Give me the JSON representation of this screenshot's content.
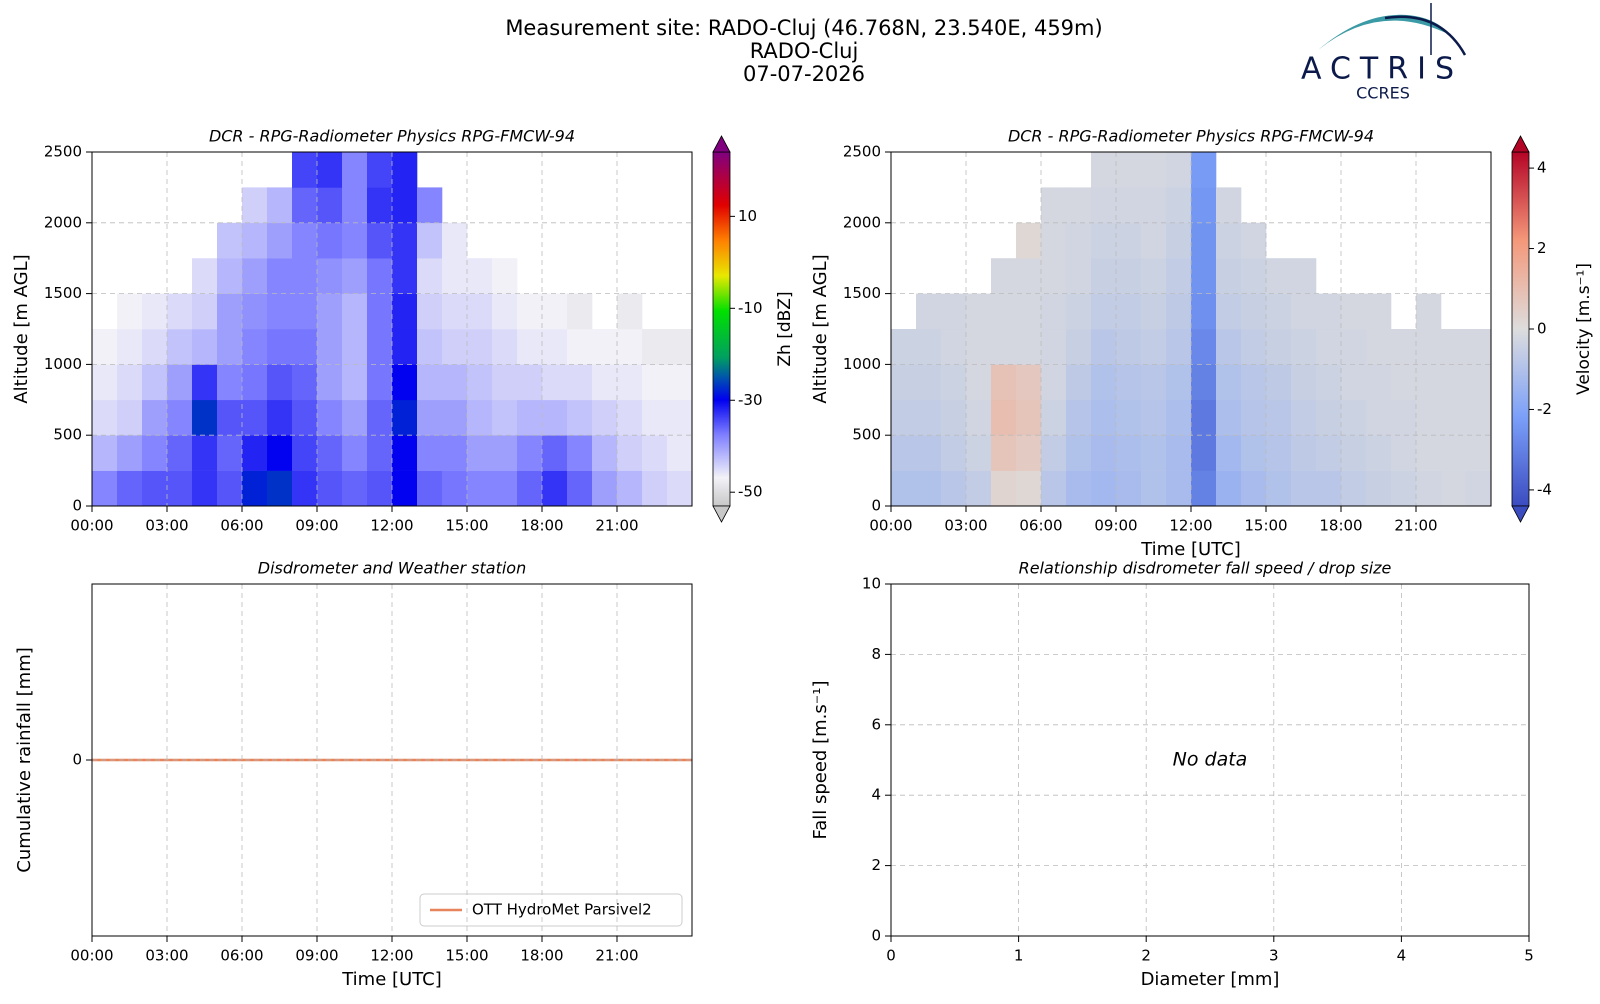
{
  "figure": {
    "title_lines": [
      "Measurement site: RADO-Cluj (46.768N, 23.540E, 459m)",
      "RADO-Cluj",
      "07-07-2026"
    ],
    "logo": {
      "name": "ACTRIS",
      "sub": "CCRES"
    }
  },
  "chart_data": [
    {
      "type": "heatmap",
      "title": "DCR - RPG-Radiometer Physics RPG-FMCW-94",
      "ylabel": "Altitude [m AGL]",
      "colorbar_label": "Zh [dBZ]",
      "colormap": "zh",
      "grid": true,
      "xlim": [
        0,
        24
      ],
      "xticks": [
        {
          "value": 0,
          "label": "00:00"
        },
        {
          "value": 3,
          "label": "03:00"
        },
        {
          "value": 6,
          "label": "06:00"
        },
        {
          "value": 9,
          "label": "09:00"
        },
        {
          "value": 12,
          "label": "12:00"
        },
        {
          "value": 15,
          "label": "15:00"
        },
        {
          "value": 18,
          "label": "18:00"
        },
        {
          "value": 21,
          "label": "21:00"
        }
      ],
      "ylim": [
        0,
        2500
      ],
      "yticks": [
        0,
        500,
        1000,
        1500,
        2000,
        2500
      ],
      "clim": [
        -53,
        24
      ],
      "colorbar_ticks": [
        -50,
        -30,
        -10,
        10
      ],
      "x_bins": [
        0,
        1,
        2,
        3,
        4,
        5,
        6,
        7,
        8,
        9,
        10,
        11,
        12,
        13,
        14,
        15,
        16,
        17,
        18,
        19,
        20,
        21,
        22,
        23,
        24
      ],
      "y_bins": [
        0,
        250,
        500,
        750,
        1000,
        1250,
        1500,
        1750,
        2000,
        2250,
        2500
      ],
      "values": [
        [
          -38,
          -36,
          -35,
          -35,
          -33,
          -35,
          -28,
          -27,
          -33,
          -35,
          -36,
          -35,
          -30,
          -36,
          -37,
          -38,
          -38,
          -36,
          -33,
          -36,
          -40,
          -42,
          -44,
          -45
        ],
        [
          -42,
          -40,
          -38,
          -36,
          -33,
          -36,
          -32,
          -30,
          -34,
          -36,
          -38,
          -36,
          -30,
          -38,
          -38,
          -40,
          -40,
          -38,
          -36,
          -38,
          -42,
          -44,
          -45,
          -46
        ],
        [
          -45,
          -44,
          -40,
          -38,
          -27,
          -35,
          -35,
          -33,
          -35,
          -38,
          -40,
          -36,
          -28,
          -40,
          -40,
          -42,
          -43,
          -42,
          -42,
          -43,
          -44,
          -45,
          -46,
          -46
        ],
        [
          -46,
          -45,
          -43,
          -40,
          -33,
          -38,
          -37,
          -35,
          -36,
          -40,
          -42,
          -37,
          -30,
          -42,
          -42,
          -43,
          -44,
          -44,
          -45,
          -45,
          -46,
          -46,
          -47,
          -47
        ],
        [
          -47,
          -46,
          -45,
          -43,
          -42,
          -40,
          -38,
          -37,
          -37,
          -40,
          -42,
          -37,
          -32,
          -43,
          -44,
          -44,
          -45,
          -46,
          -46,
          -47,
          -47,
          -47,
          -48,
          -48
        ],
        [
          null,
          -47,
          -46,
          -45,
          -44,
          -40,
          -39,
          -38,
          -38,
          -40,
          -42,
          -37,
          -32,
          -44,
          -45,
          -45,
          -46,
          -47,
          -47,
          -48,
          null,
          -48,
          null,
          null
        ],
        [
          null,
          null,
          null,
          null,
          -45,
          -42,
          -40,
          -38,
          -38,
          -39,
          -40,
          -37,
          -33,
          -45,
          -46,
          -46,
          -47,
          null,
          null,
          null,
          null,
          null,
          null,
          null
        ],
        [
          null,
          null,
          null,
          null,
          null,
          -43,
          -42,
          -40,
          -38,
          -37,
          -38,
          -35,
          -33,
          -43,
          -46,
          null,
          null,
          null,
          null,
          null,
          null,
          null,
          null,
          null
        ],
        [
          null,
          null,
          null,
          null,
          null,
          null,
          -44,
          -42,
          -36,
          -35,
          -38,
          -33,
          -32,
          -38,
          null,
          null,
          null,
          null,
          null,
          null,
          null,
          null,
          null,
          null
        ],
        [
          null,
          null,
          null,
          null,
          null,
          null,
          null,
          null,
          -34,
          -33,
          -38,
          -34,
          -32,
          null,
          null,
          null,
          null,
          null,
          null,
          null,
          null,
          null,
          null,
          null
        ]
      ]
    },
    {
      "type": "heatmap",
      "title": "DCR - RPG-Radiometer Physics RPG-FMCW-94",
      "xlabel": "Time [UTC]",
      "ylabel": "Altitude [m AGL]",
      "colorbar_label": "Velocity [m.s⁻¹]",
      "colormap": "coolwarm",
      "grid": true,
      "xlim": [
        0,
        24
      ],
      "xticks": [
        {
          "value": 0,
          "label": "00:00"
        },
        {
          "value": 3,
          "label": "03:00"
        },
        {
          "value": 6,
          "label": "06:00"
        },
        {
          "value": 9,
          "label": "09:00"
        },
        {
          "value": 12,
          "label": "12:00"
        },
        {
          "value": 15,
          "label": "15:00"
        },
        {
          "value": 18,
          "label": "18:00"
        },
        {
          "value": 21,
          "label": "21:00"
        }
      ],
      "ylim": [
        0,
        2500
      ],
      "yticks": [
        0,
        500,
        1000,
        1500,
        2000,
        2500
      ],
      "clim": [
        -4.4,
        4.4
      ],
      "colorbar_ticks": [
        -4,
        -2,
        0,
        2,
        4
      ],
      "x_bins": [
        0,
        1,
        2,
        3,
        4,
        5,
        6,
        7,
        8,
        9,
        10,
        11,
        12,
        13,
        14,
        15,
        16,
        17,
        18,
        19,
        20,
        21,
        22,
        23,
        24
      ],
      "y_bins": [
        0,
        250,
        500,
        750,
        1000,
        1250,
        1500,
        1750,
        2000,
        2250,
        2500
      ],
      "values": [
        [
          -1,
          -1,
          -0.8,
          -0.6,
          0.3,
          0.2,
          -0.8,
          -1.2,
          -1.3,
          -1.2,
          -1,
          -1.2,
          -3,
          -1.5,
          -1.2,
          -1,
          -0.8,
          -0.8,
          -0.6,
          -0.5,
          -0.4,
          -0.3,
          -0.2,
          -0.3
        ],
        [
          -0.8,
          -0.8,
          -0.6,
          -0.4,
          0.8,
          0.6,
          -0.6,
          -1,
          -1.2,
          -1.1,
          -1,
          -1.2,
          -3.2,
          -1.3,
          -1,
          -0.9,
          -0.7,
          -0.6,
          -0.5,
          -0.4,
          -0.3,
          -0.2,
          -0.2,
          -0.2
        ],
        [
          -0.6,
          -0.6,
          -0.5,
          -0.3,
          1,
          0.8,
          -0.4,
          -0.9,
          -1.1,
          -1,
          -0.9,
          -1.1,
          -3.2,
          -1.1,
          -0.9,
          -0.8,
          -0.6,
          -0.5,
          -0.4,
          -0.3,
          -0.3,
          -0.2,
          -0.2,
          -0.2
        ],
        [
          -0.5,
          -0.5,
          -0.4,
          -0.2,
          0.9,
          0.7,
          -0.3,
          -0.7,
          -1,
          -0.9,
          -0.8,
          -1,
          -3,
          -1,
          -0.8,
          -0.7,
          -0.5,
          -0.4,
          -0.3,
          -0.3,
          -0.2,
          -0.2,
          -0.2,
          -0.2
        ],
        [
          -0.4,
          -0.4,
          -0.3,
          -0.2,
          -0.2,
          -0.2,
          -0.3,
          -0.5,
          -0.8,
          -0.7,
          -0.6,
          -0.8,
          -2.8,
          -0.8,
          -0.6,
          -0.5,
          -0.4,
          -0.3,
          -0.3,
          -0.2,
          -0.2,
          -0.2,
          -0.2,
          -0.2
        ],
        [
          null,
          -0.3,
          -0.3,
          -0.2,
          -0.2,
          -0.2,
          -0.3,
          -0.4,
          -0.6,
          -0.6,
          -0.5,
          -0.7,
          -2.6,
          -0.6,
          -0.5,
          -0.4,
          -0.3,
          -0.3,
          -0.2,
          -0.2,
          null,
          -0.2,
          null,
          null
        ],
        [
          null,
          null,
          null,
          null,
          -0.2,
          -0.2,
          -0.2,
          -0.3,
          -0.5,
          -0.5,
          -0.4,
          -0.6,
          -2.5,
          -0.5,
          -0.4,
          -0.3,
          -0.3,
          null,
          null,
          null,
          null,
          null,
          null,
          null
        ],
        [
          null,
          null,
          null,
          null,
          null,
          0.2,
          -0.2,
          -0.3,
          -0.4,
          -0.4,
          -0.3,
          -0.5,
          -2.5,
          -0.4,
          -0.3,
          null,
          null,
          null,
          null,
          null,
          null,
          null,
          null,
          null
        ],
        [
          null,
          null,
          null,
          null,
          null,
          null,
          -0.2,
          -0.2,
          -0.3,
          -0.3,
          -0.3,
          -0.4,
          -2.4,
          -0.3,
          null,
          null,
          null,
          null,
          null,
          null,
          null,
          null,
          null,
          null
        ],
        [
          null,
          null,
          null,
          null,
          null,
          null,
          null,
          null,
          -0.2,
          -0.2,
          -0.2,
          -0.3,
          -2.3,
          null,
          null,
          null,
          null,
          null,
          null,
          null,
          null,
          null,
          null,
          null
        ]
      ]
    },
    {
      "type": "line",
      "title": "Disdrometer and Weather station",
      "xlabel": "Time [UTC]",
      "ylabel": "Cumulative rainfall [mm]",
      "grid": true,
      "legend": "lower right",
      "xlim": [
        0,
        24
      ],
      "xticks": [
        {
          "value": 0,
          "label": "00:00"
        },
        {
          "value": 3,
          "label": "03:00"
        },
        {
          "value": 6,
          "label": "06:00"
        },
        {
          "value": 9,
          "label": "09:00"
        },
        {
          "value": 12,
          "label": "12:00"
        },
        {
          "value": 15,
          "label": "15:00"
        },
        {
          "value": 18,
          "label": "18:00"
        },
        {
          "value": 21,
          "label": "21:00"
        }
      ],
      "ylim": [
        -0.055,
        0.055
      ],
      "yticks": [
        0
      ],
      "x": [
        0,
        24
      ],
      "series": [
        {
          "name": "OTT HydroMet Parsivel2",
          "color": "#e8845c",
          "values": [
            0,
            0
          ]
        }
      ]
    },
    {
      "type": "scatter",
      "title": "Relationship disdrometer fall speed / drop size",
      "xlabel": "Diameter [mm]",
      "ylabel": "Fall speed [m.s⁻¹]",
      "annotation": "No data",
      "grid": true,
      "xlim": [
        0,
        5
      ],
      "xticks": [
        0,
        1,
        2,
        3,
        4,
        5
      ],
      "ylim": [
        0,
        10
      ],
      "yticks": [
        0,
        2,
        4,
        6,
        8,
        10
      ]
    }
  ]
}
